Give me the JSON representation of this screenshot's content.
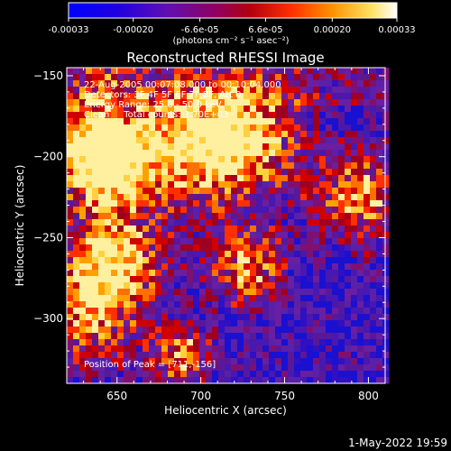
{
  "chart_data": {
    "type": "heatmap",
    "title": "Reconstructed RHESSI Image",
    "xlabel": "Heliocentric X (arcsec)",
    "ylabel": "Heliocentric Y (arcsec)",
    "xlim": [
      620,
      810
    ],
    "ylim": [
      -340,
      -145
    ],
    "x_ticks": [
      "650",
      "700",
      "750",
      "800"
    ],
    "x_tick_values": [
      650,
      700,
      750,
      800
    ],
    "y_ticks": [
      "-150",
      "-200",
      "-250",
      "-300"
    ],
    "y_tick_values": [
      -150,
      -200,
      -250,
      -300
    ],
    "colorbar": {
      "ticks": [
        "-0.00033",
        "-0.00020",
        "-6.6e-05",
        "6.6e-05",
        "0.00020",
        "0.00033"
      ],
      "tick_values": [
        -0.00033,
        -0.0002,
        -6.6e-05,
        6.6e-05,
        0.0002,
        0.00033
      ],
      "range": [
        -0.00033,
        0.00033
      ],
      "unit_label": "(photons cm⁻² s⁻¹ asec⁻²)",
      "colors": [
        "#0000ff",
        "#4000c0",
        "#7020a0",
        "#900050",
        "#c00000",
        "#ff4000",
        "#ff9000",
        "#ffe060",
        "#ffffff"
      ]
    },
    "peak_label": "Position of Peak = [711,-156]",
    "peak_position": [
      711,
      -156
    ],
    "annotations": [
      "22-Aug-2005 00:07:08.000 to 00:10:04.000",
      "Detectors: 3F 4F 5F 6F 7F 8F, Att 0",
      "Energy Range: 25.0 - 50.0 keV",
      "Clean     Total counts: 3.70E+03"
    ]
  },
  "footer": {
    "date": "1-May-2022 19:59"
  }
}
